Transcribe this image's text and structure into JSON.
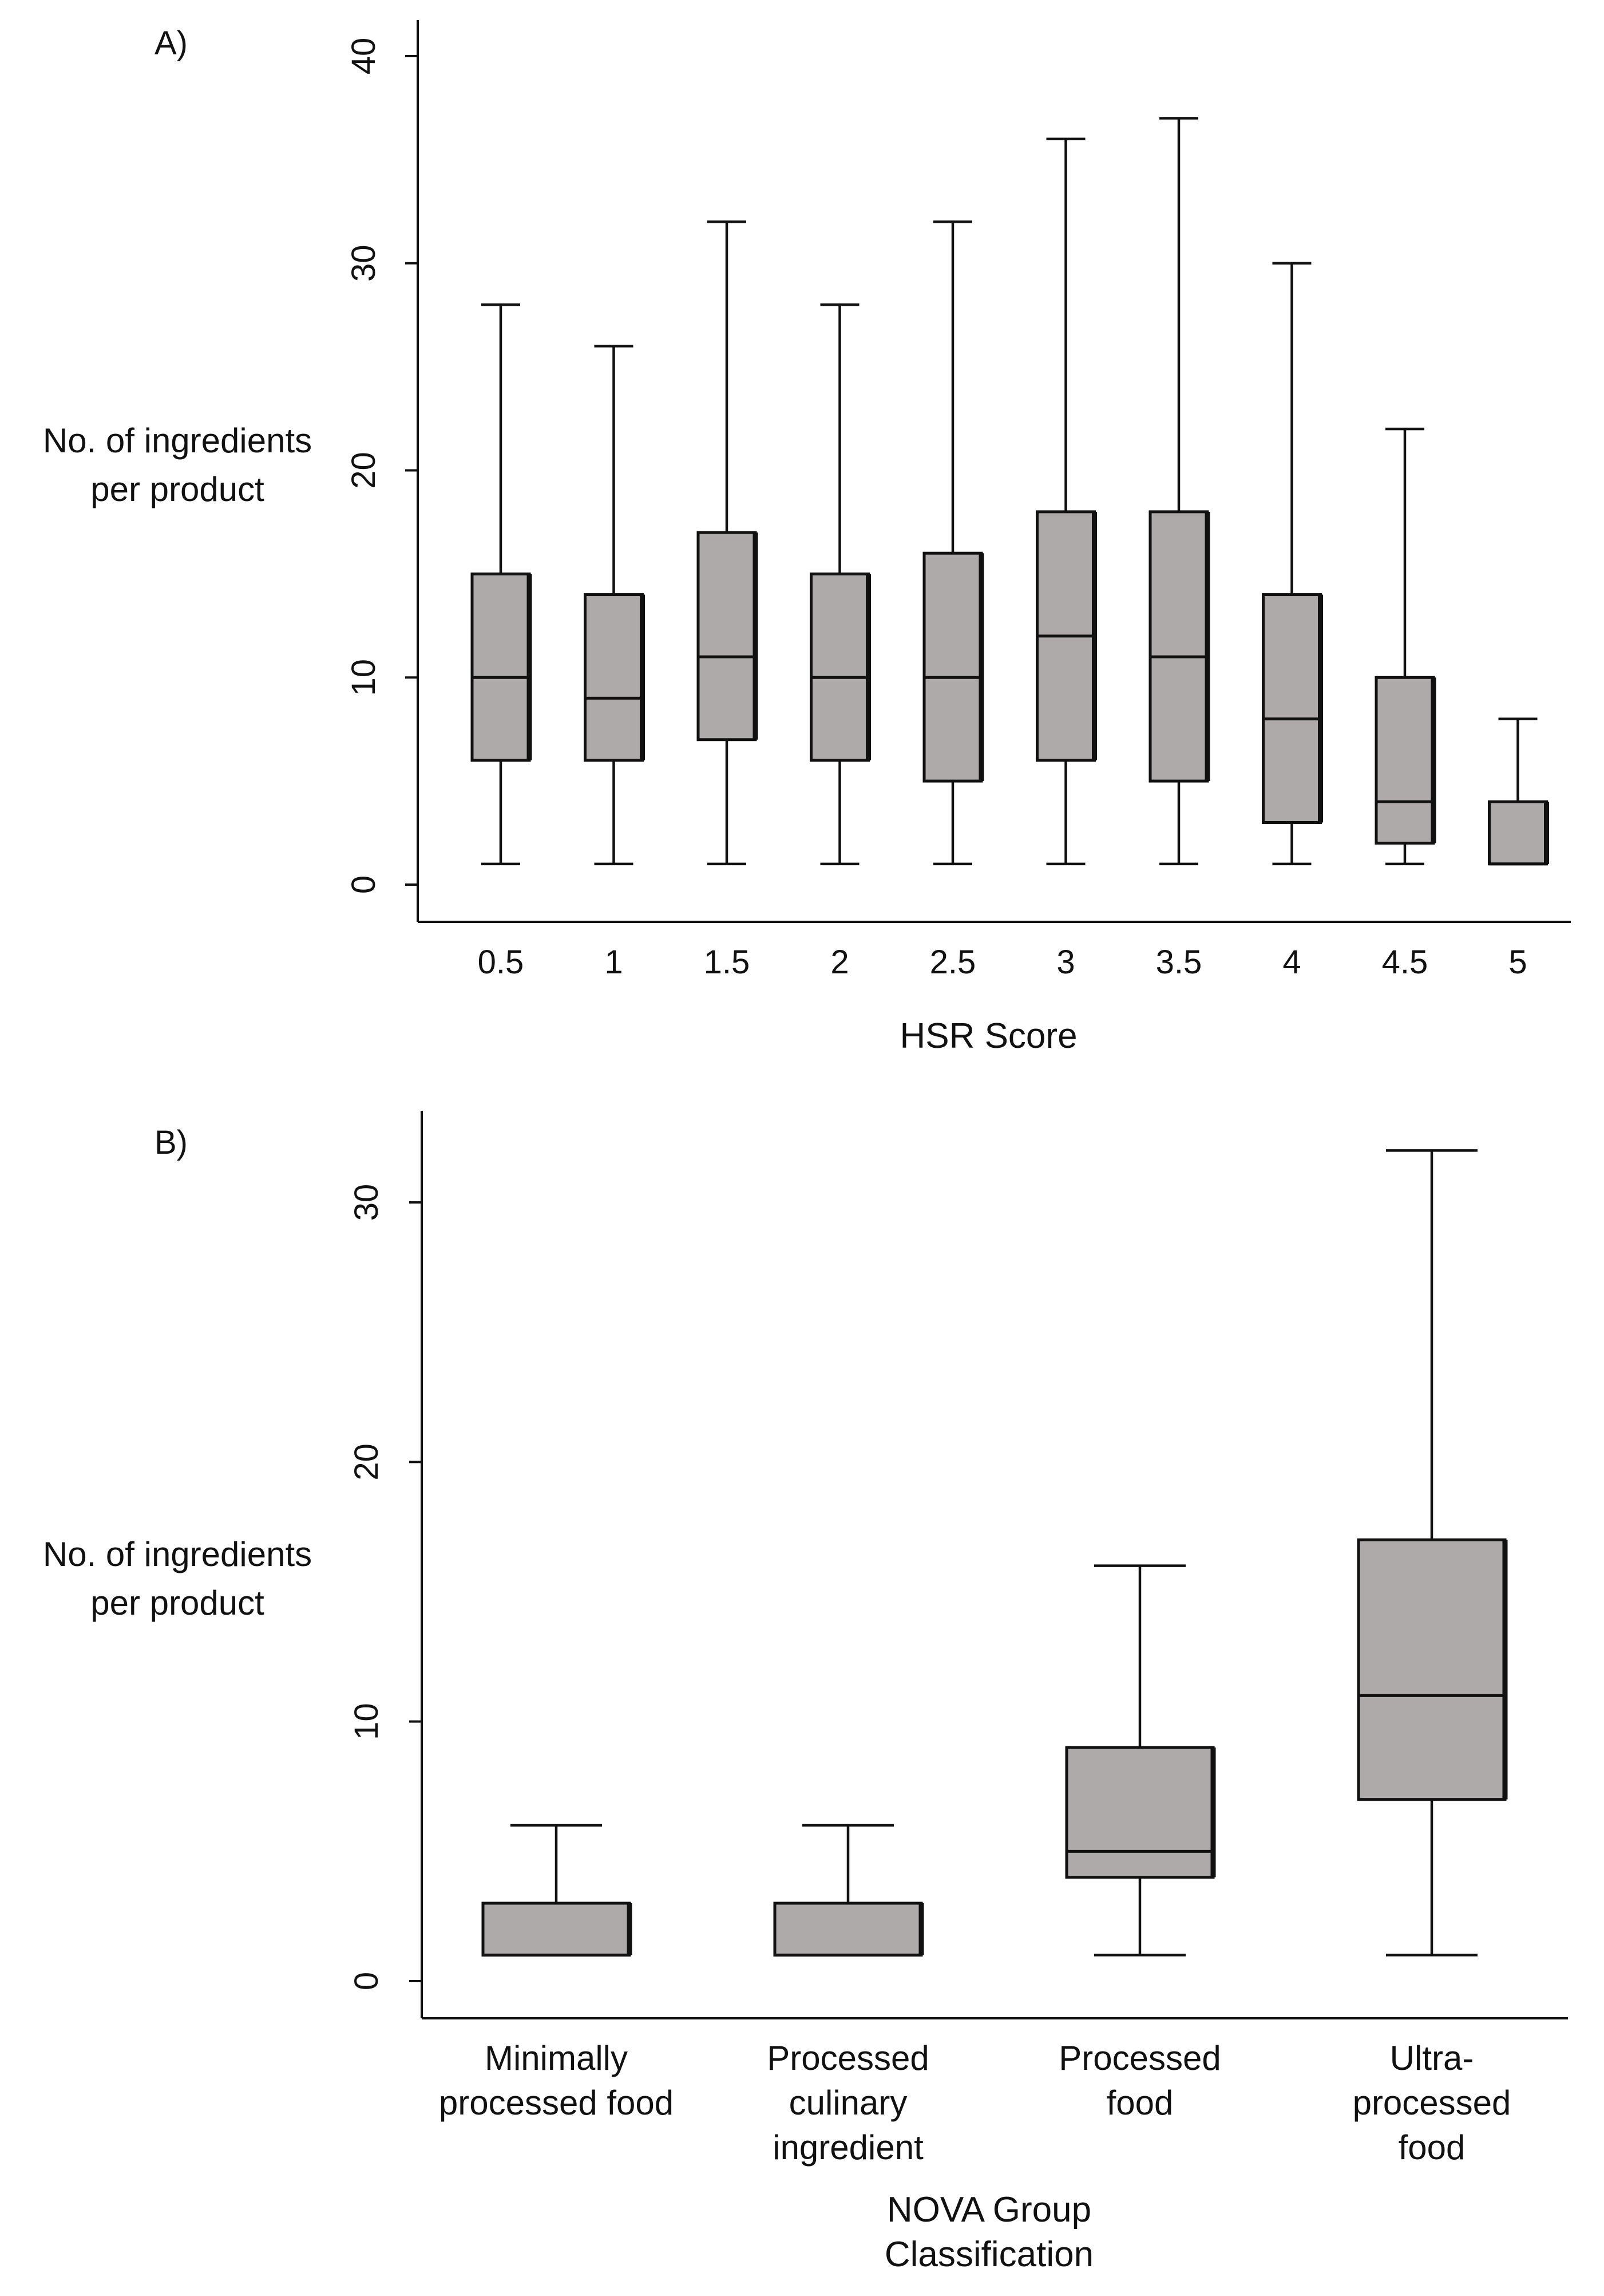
{
  "chart_data": [
    {
      "type": "box",
      "panel_label": "A)",
      "title": "",
      "xlabel": "HSR Score",
      "ylabel_lines": [
        "No. of ingredients",
        "per product"
      ],
      "ylim": [
        -1,
        42
      ],
      "yticks": [
        0,
        10,
        20,
        30,
        40
      ],
      "ytick_labels": [
        "0",
        "10",
        "20",
        "30",
        "40"
      ],
      "grid": false,
      "box_fill": "#aeaaa9",
      "line_color": "#111111",
      "categories": [
        "0.5",
        "1",
        "1.5",
        "2",
        "2.5",
        "3",
        "3.5",
        "4",
        "4.5",
        "5"
      ],
      "boxes": [
        {
          "category": "0.5",
          "min": 1,
          "q1": 6,
          "median": 10,
          "q3": 15,
          "max": 28
        },
        {
          "category": "1",
          "min": 1,
          "q1": 6,
          "median": 9,
          "q3": 14,
          "max": 26
        },
        {
          "category": "1.5",
          "min": 1,
          "q1": 7,
          "median": 11,
          "q3": 17,
          "max": 32
        },
        {
          "category": "2",
          "min": 1,
          "q1": 6,
          "median": 10,
          "q3": 15,
          "max": 28
        },
        {
          "category": "2.5",
          "min": 1,
          "q1": 5,
          "median": 10,
          "q3": 16,
          "max": 32
        },
        {
          "category": "3",
          "min": 1,
          "q1": 6,
          "median": 12,
          "q3": 18,
          "max": 36
        },
        {
          "category": "3.5",
          "min": 1,
          "q1": 5,
          "median": 11,
          "q3": 18,
          "max": 37
        },
        {
          "category": "4",
          "min": 1,
          "q1": 3,
          "median": 8,
          "q3": 14,
          "max": 30
        },
        {
          "category": "4.5",
          "min": 1,
          "q1": 2,
          "median": 4,
          "q3": 10,
          "max": 22
        },
        {
          "category": "5",
          "min": 1,
          "q1": 1,
          "median": 1,
          "q3": 4,
          "max": 8
        }
      ]
    },
    {
      "type": "box",
      "panel_label": "B)",
      "title": "",
      "xlabel_lines": [
        "NOVA Group",
        "Classification"
      ],
      "ylabel_lines": [
        "No. of ingredients",
        "per product"
      ],
      "ylim": [
        -1.5,
        33.5
      ],
      "yticks": [
        0,
        10,
        20,
        30
      ],
      "ytick_labels": [
        "0",
        "10",
        "20",
        "30"
      ],
      "grid": false,
      "box_fill": "#aeaaa9",
      "line_color": "#111111",
      "categories": [
        [
          "Minimally",
          "processed food"
        ],
        [
          "Processed",
          "culinary",
          "ingredient"
        ],
        [
          "Processed",
          "food"
        ],
        [
          "Ultra-",
          "processed",
          "food"
        ]
      ],
      "boxes": [
        {
          "category": "Minimally processed food",
          "min": 1,
          "q1": 1,
          "median": 1,
          "q3": 3,
          "max": 6
        },
        {
          "category": "Processed culinary ingredient",
          "min": 1,
          "q1": 1,
          "median": 1,
          "q3": 3,
          "max": 6
        },
        {
          "category": "Processed food",
          "min": 1,
          "q1": 4,
          "median": 5,
          "q3": 9,
          "max": 16
        },
        {
          "category": "Ultra-processed food",
          "min": 1,
          "q1": 7,
          "median": 11,
          "q3": 17,
          "max": 32
        }
      ]
    }
  ]
}
